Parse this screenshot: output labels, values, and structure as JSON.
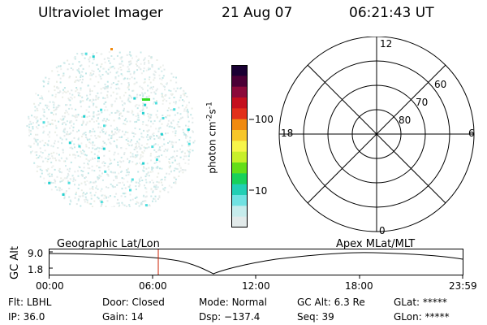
{
  "header": {
    "title": "Ultraviolet Imager",
    "date": "21 Aug 07",
    "time": "06:21:43 UT"
  },
  "colorbar": {
    "label_main": "photon cm",
    "label_sup1": "-2",
    "label_mid": "s",
    "label_sup2": "-1",
    "tick_100": "100",
    "tick_10": "10",
    "colors": [
      "#1a0033",
      "#4b0036",
      "#8b0a3a",
      "#c4101e",
      "#e2301a",
      "#f08a10",
      "#f7c62a",
      "#f7f54a",
      "#c8ef2a",
      "#64de18",
      "#18d15a",
      "#22cfb4",
      "#70e2e2",
      "#c6ecec",
      "#e2eaea"
    ]
  },
  "polar": {
    "mlt_12": "12",
    "mlt_18": "18",
    "mlt_6": "6",
    "mlt_0": "0",
    "lat_60": "60",
    "lat_70": "70",
    "lat_80": "80"
  },
  "orbit": {
    "left_label": "Geographic Lat/Lon",
    "right_label": "Apex MLat/MLT",
    "y_axis_label": "GC Alt",
    "y_tick_top": "9.0",
    "y_tick_bottom": "1.8",
    "x_ticks": [
      "00:00",
      "06:00",
      "12:00",
      "18:00",
      "23:59"
    ]
  },
  "footer": {
    "row1": [
      {
        "label": "Flt:",
        "value": "LBHL"
      },
      {
        "label": "Door:",
        "value": "Closed"
      },
      {
        "label": "Mode:",
        "value": "Normal"
      },
      {
        "label": "GC Alt:",
        "value": "6.3 Re"
      },
      {
        "label": "GLat:",
        "value": "*****"
      }
    ],
    "row2": [
      {
        "label": "IP:",
        "value": "36.0"
      },
      {
        "label": "Gain:",
        "value": "14"
      },
      {
        "label": "Dsp:",
        "value": "−137.4"
      },
      {
        "label": "Seq:",
        "value": "39"
      },
      {
        "label": "GLon:",
        "value": "*****"
      }
    ]
  }
}
